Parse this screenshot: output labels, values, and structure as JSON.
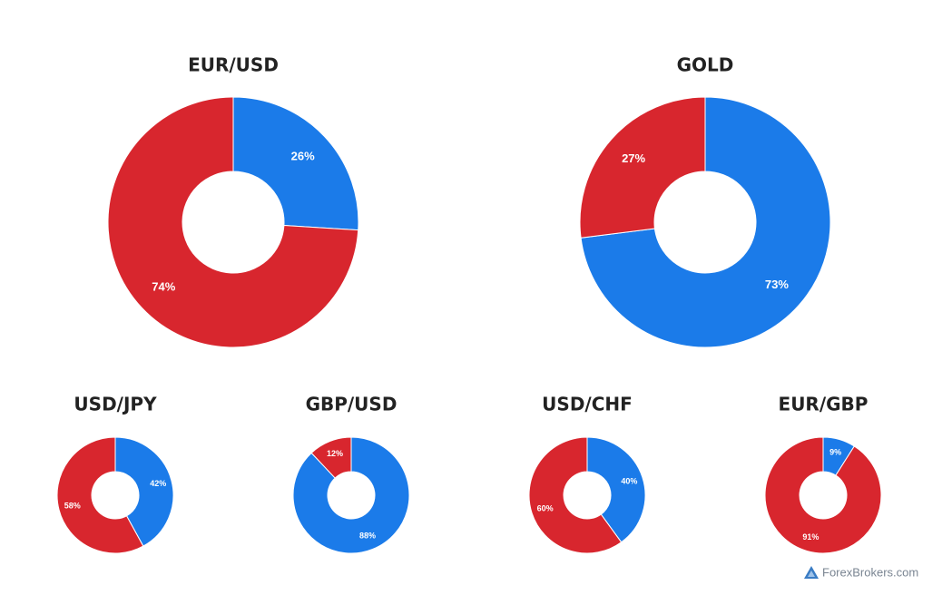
{
  "chart_data": [
    {
      "type": "donut",
      "title": "EUR/USD",
      "values": [
        26,
        74
      ],
      "value_labels": [
        "26%",
        "74%"
      ],
      "colors": [
        "#1b7be9",
        "#d8262e"
      ]
    },
    {
      "type": "donut",
      "title": "GOLD",
      "values": [
        73,
        27
      ],
      "value_labels": [
        "73%",
        "27%"
      ],
      "colors": [
        "#1b7be9",
        "#d8262e"
      ]
    },
    {
      "type": "donut",
      "title": "USD/JPY",
      "values": [
        42,
        58
      ],
      "value_labels": [
        "42%",
        "58%"
      ],
      "colors": [
        "#1b7be9",
        "#d8262e"
      ]
    },
    {
      "type": "donut",
      "title": "GBP/USD",
      "values": [
        88,
        12
      ],
      "value_labels": [
        "88%",
        "12%"
      ],
      "colors": [
        "#1b7be9",
        "#d8262e"
      ]
    },
    {
      "type": "donut",
      "title": "USD/CHF",
      "values": [
        40,
        60
      ],
      "value_labels": [
        "40%",
        "60%"
      ],
      "colors": [
        "#1b7be9",
        "#d8262e"
      ]
    },
    {
      "type": "donut",
      "title": "EUR/GBP",
      "values": [
        9,
        91
      ],
      "value_labels": [
        "9%",
        "91%"
      ],
      "colors": [
        "#1b7be9",
        "#d8262e"
      ]
    }
  ],
  "watermark": "ForexBrokers.com"
}
